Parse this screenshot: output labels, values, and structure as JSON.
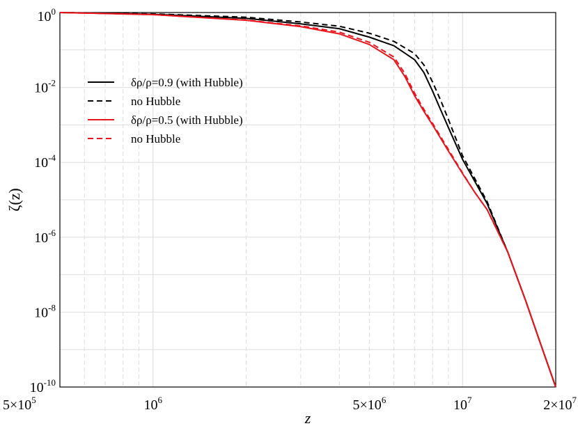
{
  "chart_data": {
    "type": "line",
    "xlabel": "z",
    "ylabel": "ζ(z)",
    "xscale": "log",
    "yscale": "log",
    "xlim": [
      500000,
      20000000
    ],
    "ylim": [
      1e-10,
      1
    ],
    "grid": true,
    "legend_position": "upper-left",
    "x_ticks": [
      {
        "value": 500000,
        "base": "5×10",
        "exp": "5"
      },
      {
        "value": 1000000,
        "base": "10",
        "exp": "6"
      },
      {
        "value": 5000000,
        "base": "5×10",
        "exp": "6"
      },
      {
        "value": 10000000,
        "base": "10",
        "exp": "7"
      },
      {
        "value": 20000000,
        "base": "2×10",
        "exp": "7"
      }
    ],
    "y_ticks": [
      {
        "value": 1,
        "base": "10",
        "exp": "0"
      },
      {
        "value": 0.01,
        "base": "10",
        "exp": "-2"
      },
      {
        "value": 0.0001,
        "base": "10",
        "exp": "-4"
      },
      {
        "value": 1e-06,
        "base": "10",
        "exp": "-6"
      },
      {
        "value": 1e-08,
        "base": "10",
        "exp": "-8"
      },
      {
        "value": 1e-10,
        "base": "10",
        "exp": "-10"
      }
    ],
    "series": [
      {
        "name": "δρ/ρ=0.9 (with Hubble)",
        "color": "#000000",
        "dash": "solid",
        "x": [
          500000,
          1000000,
          2000000,
          3000000,
          4000000,
          5000000,
          6000000,
          7000000,
          7500000,
          8000000,
          8500000,
          9000000,
          10000000,
          12000000,
          14000000,
          16000000,
          18000000,
          20000000
        ],
        "y": [
          1.0,
          0.9,
          0.7,
          0.5,
          0.37,
          0.22,
          0.13,
          0.055,
          0.025,
          0.008,
          0.0025,
          0.00085,
          0.00012,
          8e-06,
          4e-07,
          2e-08,
          1.2e-09,
          1e-10
        ]
      },
      {
        "name": "no Hubble",
        "color": "#000000",
        "dash": "dashed",
        "x": [
          500000,
          1000000,
          2000000,
          3000000,
          4000000,
          5000000,
          6000000,
          7000000,
          7500000,
          8000000,
          8500000,
          9000000,
          10000000,
          12000000,
          14000000,
          16000000,
          18000000,
          20000000
        ],
        "y": [
          1.0,
          0.92,
          0.75,
          0.56,
          0.43,
          0.28,
          0.17,
          0.08,
          0.04,
          0.014,
          0.0045,
          0.0014,
          0.00015,
          9e-06,
          4e-07,
          2e-08,
          1.2e-09,
          1e-10
        ]
      },
      {
        "name": "δρ/ρ=0.5 (with Hubble)",
        "color": "#e8141c",
        "dash": "solid",
        "x": [
          500000,
          1000000,
          2000000,
          3000000,
          4000000,
          5000000,
          6000000,
          6500000,
          7000000,
          7500000,
          8000000,
          9000000,
          10000000,
          11000000,
          12000000,
          14000000,
          16000000,
          18000000,
          20000000
        ],
        "y": [
          1.0,
          0.88,
          0.62,
          0.42,
          0.27,
          0.14,
          0.055,
          0.02,
          0.006,
          0.0023,
          0.001,
          0.0002,
          5e-05,
          1.5e-05,
          5.5e-06,
          4e-07,
          2e-08,
          1.2e-09,
          1e-10
        ]
      },
      {
        "name": "no Hubble",
        "color": "#e8141c",
        "dash": "dashed",
        "x": [
          500000,
          1000000,
          2000000,
          3000000,
          4000000,
          5000000,
          6000000,
          6500000,
          7000000,
          7500000,
          8000000,
          9000000,
          10000000,
          11000000,
          12000000,
          14000000,
          16000000,
          18000000,
          20000000
        ],
        "y": [
          1.0,
          0.88,
          0.63,
          0.44,
          0.3,
          0.16,
          0.065,
          0.024,
          0.007,
          0.0026,
          0.0011,
          0.00022,
          5.2e-05,
          1.5e-05,
          5.5e-06,
          4e-07,
          2e-08,
          1.2e-09,
          1e-10
        ]
      }
    ]
  }
}
